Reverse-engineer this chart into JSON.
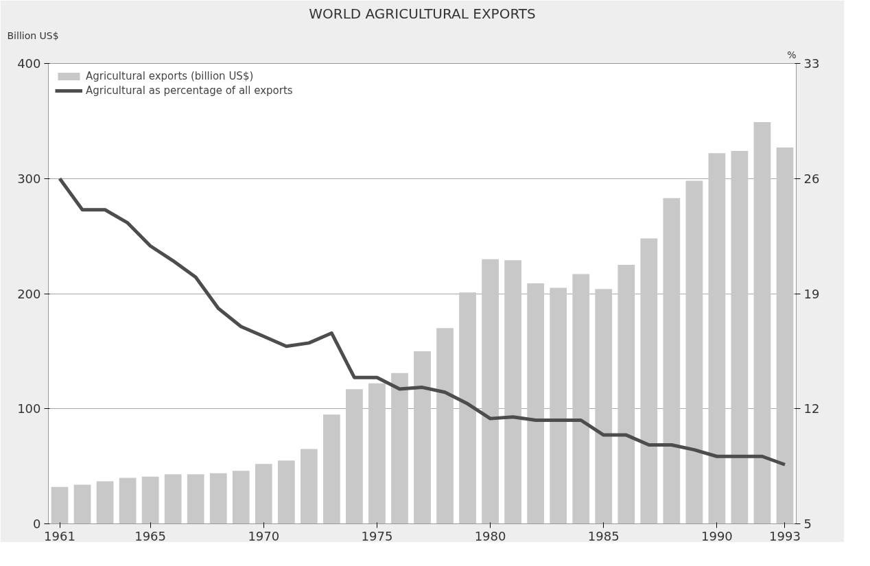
{
  "chart_data": {
    "type": "bar",
    "title": "WORLD AGRICULTURAL EXPORTS",
    "ylabel": "Billion US$",
    "y2label": "%",
    "x": [
      1961,
      1962,
      1963,
      1964,
      1965,
      1966,
      1967,
      1968,
      1969,
      1970,
      1971,
      1972,
      1973,
      1974,
      1975,
      1976,
      1977,
      1978,
      1979,
      1980,
      1981,
      1982,
      1983,
      1984,
      1985,
      1986,
      1987,
      1988,
      1989,
      1990,
      1991,
      1992,
      1993
    ],
    "series": [
      {
        "name": "Agricultural exports (billion US$)",
        "color": "#c8c8c8",
        "values": [
          32,
          34,
          37,
          40,
          41,
          43,
          43,
          44,
          46,
          52,
          55,
          65,
          95,
          117,
          122,
          131,
          150,
          170,
          201,
          230,
          229,
          209,
          205,
          217,
          204,
          225,
          248,
          283,
          298,
          322,
          324,
          349,
          327
        ]
      },
      {
        "name": "Agricultural as percentage of all exports",
        "type": "line",
        "axis": "y2",
        "color": "#4d4d4d",
        "values": [
          26,
          24.1,
          24.1,
          23.3,
          21.9,
          21.0,
          20.0,
          18.1,
          17.0,
          16.4,
          15.8,
          16.0,
          16.6,
          13.9,
          13.9,
          13.2,
          13.3,
          13.0,
          12.3,
          11.4,
          11.5,
          11.3,
          11.3,
          11.3,
          10.4,
          10.4,
          9.8,
          9.8,
          9.5,
          9.1,
          9.1,
          9.1,
          8.6
        ]
      }
    ],
    "xlim": [
      1960.5,
      1993.5
    ],
    "xticks": [
      1961,
      1965,
      1970,
      1975,
      1980,
      1985,
      1990,
      1993
    ],
    "ylim": [
      0,
      400
    ],
    "yticks": [
      0,
      100,
      200,
      300,
      400
    ],
    "y2lim": [
      5,
      33
    ],
    "y2ticks": [
      5,
      12,
      19,
      26,
      33
    ],
    "grid": "y",
    "legend": "top left",
    "line_style": "solid",
    "marker": "none"
  }
}
